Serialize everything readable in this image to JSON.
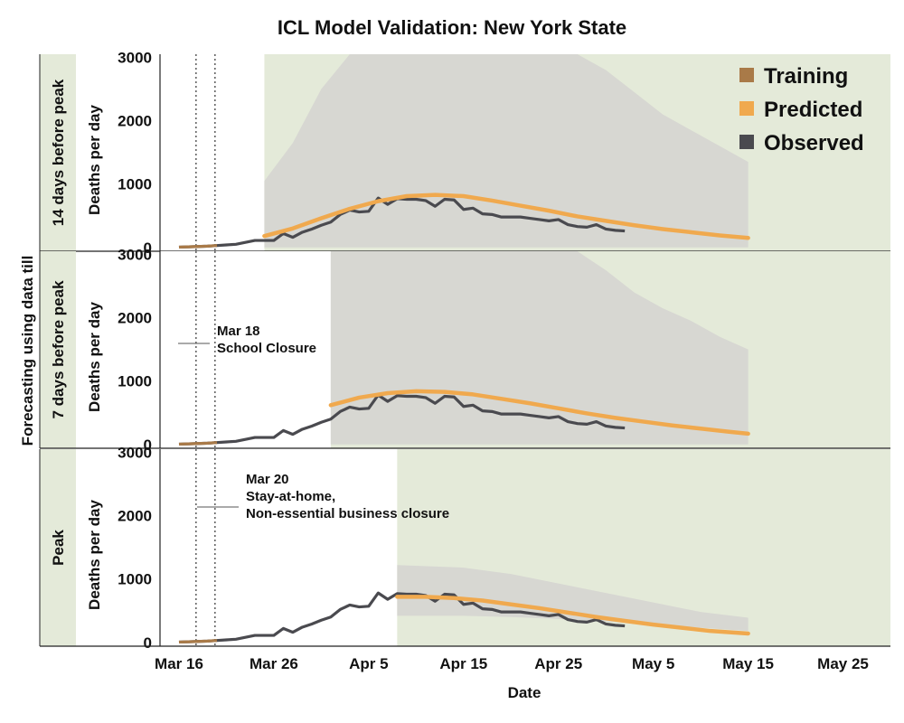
{
  "chart_data": {
    "type": "line",
    "title": "ICL Model Validation: New York State",
    "xlabel": "Date",
    "ylabel": "Deaths per day",
    "outer_ylabel": "Forecasting using data till",
    "x_ticks": [
      "Mar 16",
      "Mar 26",
      "Apr 5",
      "Apr 15",
      "Apr 25",
      "May 5",
      "May 15",
      "May 25"
    ],
    "x_tick_days": [
      15,
      25,
      35,
      45,
      55,
      65,
      75,
      85
    ],
    "xlim": [
      13,
      90
    ],
    "y_ticks": [
      0,
      1000,
      2000,
      3000
    ],
    "ylim": [
      -60,
      3050
    ],
    "legend": {
      "position": "top-right",
      "entries": [
        {
          "label": "Training",
          "color": "#a97a48"
        },
        {
          "label": "Predicted",
          "color": "#f0a94e"
        },
        {
          "label": "Observed",
          "color": "#4a4a4f"
        }
      ]
    },
    "colors": {
      "panel_bg": "#e4ead9",
      "band": "#d7d7d2",
      "predicted": "#f0a94e",
      "observed": "#4a4a4f",
      "training": "#a97a48"
    },
    "observed_days": [
      15,
      16,
      17,
      18,
      19,
      20,
      21,
      22,
      23,
      24,
      25,
      26,
      27,
      28,
      29,
      30,
      31,
      32,
      33,
      34,
      35,
      36,
      37,
      38,
      39,
      40,
      41,
      42,
      43,
      44,
      45,
      46,
      47,
      48,
      49,
      50,
      51,
      52,
      53,
      54,
      55,
      56,
      57,
      58,
      59,
      60,
      61,
      62
    ],
    "observed_values": [
      5,
      10,
      15,
      20,
      30,
      40,
      50,
      80,
      110,
      110,
      110,
      220,
      160,
      240,
      290,
      350,
      400,
      520,
      590,
      560,
      570,
      780,
      680,
      770,
      760,
      760,
      740,
      650,
      760,
      750,
      600,
      620,
      530,
      520,
      480,
      480,
      480,
      460,
      440,
      420,
      440,
      360,
      330,
      320,
      360,
      290,
      270,
      260
    ],
    "vertical_markers": [
      {
        "day": 16.8,
        "label": "Mar 16"
      },
      {
        "day": 18.8,
        "label": "Mar 18"
      }
    ],
    "panels": [
      {
        "label": "14 days before peak",
        "training_end_day": 24,
        "predicted": [
          [
            24,
            180
          ],
          [
            27,
            300
          ],
          [
            30,
            460
          ],
          [
            33,
            610
          ],
          [
            36,
            730
          ],
          [
            39,
            810
          ],
          [
            42,
            830
          ],
          [
            45,
            810
          ],
          [
            48,
            740
          ],
          [
            51,
            660
          ],
          [
            54,
            580
          ],
          [
            57,
            490
          ],
          [
            60,
            420
          ],
          [
            63,
            350
          ],
          [
            66,
            290
          ],
          [
            69,
            240
          ],
          [
            72,
            190
          ],
          [
            75,
            150
          ]
        ],
        "band_upper": [
          [
            24,
            1050
          ],
          [
            27,
            1650
          ],
          [
            30,
            2500
          ],
          [
            33,
            3050
          ],
          [
            57,
            3050
          ],
          [
            60,
            2800
          ],
          [
            63,
            2450
          ],
          [
            66,
            2100
          ],
          [
            69,
            1850
          ],
          [
            72,
            1600
          ],
          [
            75,
            1350
          ]
        ],
        "band_lower": [
          [
            24,
            0
          ],
          [
            75,
            0
          ]
        ],
        "annotation": null
      },
      {
        "label": "7 days before peak",
        "training_end_day": 31,
        "predicted": [
          [
            31,
            620
          ],
          [
            34,
            740
          ],
          [
            37,
            810
          ],
          [
            40,
            840
          ],
          [
            43,
            830
          ],
          [
            46,
            790
          ],
          [
            49,
            720
          ],
          [
            52,
            650
          ],
          [
            55,
            570
          ],
          [
            58,
            490
          ],
          [
            61,
            420
          ],
          [
            64,
            360
          ],
          [
            67,
            300
          ],
          [
            70,
            250
          ],
          [
            73,
            200
          ],
          [
            75,
            170
          ]
        ],
        "band_upper": [
          [
            31,
            3050
          ],
          [
            57,
            3050
          ],
          [
            60,
            2750
          ],
          [
            63,
            2400
          ],
          [
            66,
            2150
          ],
          [
            69,
            1950
          ],
          [
            72,
            1700
          ],
          [
            75,
            1500
          ]
        ],
        "band_lower": [
          [
            31,
            0
          ],
          [
            75,
            0
          ]
        ],
        "annotation": {
          "line1": "Mar 18",
          "line2": "School Closure",
          "line3": ""
        }
      },
      {
        "label": "Peak",
        "training_end_day": 38,
        "predicted": [
          [
            38,
            720
          ],
          [
            41,
            720
          ],
          [
            44,
            700
          ],
          [
            47,
            660
          ],
          [
            50,
            600
          ],
          [
            53,
            540
          ],
          [
            56,
            470
          ],
          [
            59,
            400
          ],
          [
            62,
            340
          ],
          [
            65,
            280
          ],
          [
            68,
            230
          ],
          [
            71,
            180
          ],
          [
            75,
            140
          ]
        ],
        "band_upper": [
          [
            38,
            1220
          ],
          [
            45,
            1180
          ],
          [
            50,
            1080
          ],
          [
            55,
            930
          ],
          [
            60,
            780
          ],
          [
            65,
            630
          ],
          [
            70,
            480
          ],
          [
            75,
            390
          ]
        ],
        "band_lower": [
          [
            38,
            420
          ],
          [
            45,
            420
          ],
          [
            50,
            400
          ],
          [
            55,
            370
          ],
          [
            60,
            330
          ],
          [
            65,
            280
          ],
          [
            70,
            230
          ],
          [
            75,
            180
          ]
        ],
        "annotation": {
          "line1": "Mar 20",
          "line2": "Stay-at-home,",
          "line3": "Non-essential business closure"
        }
      }
    ]
  }
}
